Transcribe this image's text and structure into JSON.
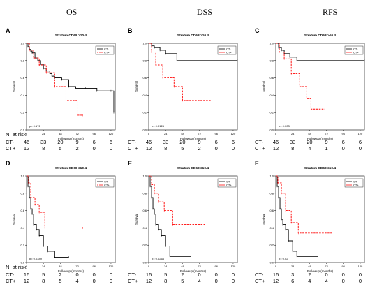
{
  "column_headers": [
    "OS",
    "DSS",
    "RFS"
  ],
  "at_risk_label": "N. at risk",
  "chart_data": [
    {
      "type": "line",
      "panel_letter": "A",
      "column": "OS",
      "title": "Stratum CD68 >10.4",
      "xlabel": "Followup (months)",
      "ylabel": "Survival",
      "xlim": [
        0,
        126
      ],
      "ylim": [
        0,
        1.0
      ],
      "xticks": [
        0,
        24,
        48,
        72,
        96,
        120
      ],
      "yticks": [
        0.0,
        0.2,
        0.4,
        0.6,
        0.8,
        1.0
      ],
      "pvalue_text": "p= 0.176",
      "legend": [
        "CT-",
        "CT+"
      ],
      "series": [
        {
          "name": "CT-",
          "color": "#000000",
          "dashed": false,
          "x": [
            0,
            2,
            4,
            6,
            8,
            12,
            16,
            20,
            24,
            28,
            33,
            36,
            40,
            50,
            60,
            70,
            84,
            100,
            120,
            124
          ],
          "y": [
            1.0,
            0.96,
            0.93,
            0.91,
            0.89,
            0.83,
            0.8,
            0.76,
            0.71,
            0.68,
            0.65,
            0.62,
            0.6,
            0.58,
            0.5,
            0.48,
            0.48,
            0.45,
            0.45,
            0.2
          ]
        },
        {
          "name": "CT+",
          "color": "#ff0000",
          "dashed": true,
          "x": [
            0,
            4,
            10,
            18,
            28,
            40,
            56,
            72,
            80
          ],
          "y": [
            1.0,
            0.92,
            0.83,
            0.75,
            0.66,
            0.5,
            0.34,
            0.17,
            0.17
          ]
        }
      ],
      "at_risk": {
        "CT-": [
          46,
          33,
          20,
          9,
          6,
          6
        ],
        "CT+": [
          12,
          8,
          5,
          2,
          0,
          0
        ]
      }
    },
    {
      "type": "line",
      "panel_letter": "B",
      "column": "DSS",
      "title": "Stratum CD68 >10.4",
      "xlabel": "Followup (months)",
      "ylabel": "Survival",
      "xlim": [
        0,
        126
      ],
      "ylim": [
        0,
        1.0
      ],
      "xticks": [
        0,
        24,
        48,
        72,
        96,
        120
      ],
      "yticks": [
        0.0,
        0.2,
        0.4,
        0.6,
        0.8,
        1.0
      ],
      "pvalue_text": "p= 0.0124",
      "legend": [
        "CT-",
        "CT+"
      ],
      "series": [
        {
          "name": "CT-",
          "color": "#000000",
          "dashed": false,
          "x": [
            0,
            4,
            8,
            16,
            24,
            40,
            126
          ],
          "y": [
            1.0,
            0.97,
            0.95,
            0.92,
            0.88,
            0.8,
            0.8
          ]
        },
        {
          "name": "CT+",
          "color": "#ff0000",
          "dashed": true,
          "x": [
            0,
            4,
            10,
            20,
            36,
            48,
            90
          ],
          "y": [
            1.0,
            0.9,
            0.75,
            0.6,
            0.5,
            0.34,
            0.34
          ]
        }
      ],
      "at_risk": {
        "CT-": [
          46,
          33,
          20,
          9,
          6,
          6
        ],
        "CT+": [
          12,
          8,
          5,
          2,
          0,
          0
        ]
      }
    },
    {
      "type": "line",
      "panel_letter": "C",
      "column": "RFS",
      "title": "Stratum CD68 >10.4",
      "xlabel": "Followup (months)",
      "ylabel": "Survival",
      "xlim": [
        0,
        126
      ],
      "ylim": [
        0,
        1.0
      ],
      "xticks": [
        0,
        24,
        48,
        72,
        96,
        120
      ],
      "yticks": [
        0.0,
        0.2,
        0.4,
        0.6,
        0.8,
        1.0
      ],
      "pvalue_text": "p= 0.003",
      "legend": [
        "CT-",
        "CT+"
      ],
      "series": [
        {
          "name": "CT-",
          "color": "#000000",
          "dashed": false,
          "x": [
            0,
            4,
            8,
            12,
            20,
            30,
            126
          ],
          "y": [
            1.0,
            0.95,
            0.92,
            0.88,
            0.84,
            0.8,
            0.8
          ]
        },
        {
          "name": "CT+",
          "color": "#ff0000",
          "dashed": true,
          "x": [
            0,
            5,
            12,
            22,
            34,
            44,
            50,
            70
          ],
          "y": [
            1.0,
            0.9,
            0.82,
            0.65,
            0.5,
            0.36,
            0.24,
            0.24
          ]
        }
      ],
      "at_risk": {
        "CT-": [
          46,
          33,
          20,
          9,
          6,
          6
        ],
        "CT+": [
          12,
          8,
          4,
          1,
          0,
          0
        ]
      }
    },
    {
      "type": "line",
      "panel_letter": "D",
      "column": "OS",
      "title": "Stratum CD68 ≤10.4",
      "xlabel": "Followup (months)",
      "ylabel": "Survival",
      "xlim": [
        0,
        126
      ],
      "ylim": [
        0,
        1.0
      ],
      "xticks": [
        0,
        24,
        48,
        72,
        96,
        120
      ],
      "yticks": [
        0.0,
        0.2,
        0.4,
        0.6,
        0.8,
        1.0
      ],
      "pvalue_text": "p= 0.0349",
      "legend": [
        "CT-",
        "CT+"
      ],
      "series": [
        {
          "name": "CT-",
          "color": "#000000",
          "dashed": false,
          "x": [
            0,
            2,
            4,
            6,
            8,
            10,
            14,
            18,
            24,
            30,
            40,
            60
          ],
          "y": [
            1.0,
            0.88,
            0.75,
            0.62,
            0.56,
            0.44,
            0.38,
            0.31,
            0.19,
            0.13,
            0.06,
            0.06
          ]
        },
        {
          "name": "CT+",
          "color": "#ff0000",
          "dashed": true,
          "x": [
            0,
            3,
            6,
            12,
            18,
            26,
            80
          ],
          "y": [
            1.0,
            0.92,
            0.75,
            0.67,
            0.58,
            0.4,
            0.4
          ]
        }
      ],
      "at_risk": {
        "CT-": [
          16,
          5,
          2,
          0,
          0,
          0
        ],
        "CT+": [
          12,
          8,
          5,
          4,
          0,
          0
        ]
      }
    },
    {
      "type": "line",
      "panel_letter": "E",
      "column": "DSS",
      "title": "Stratum CD68 ≤10.4",
      "xlabel": "Followup (months)",
      "ylabel": "Survival",
      "xlim": [
        0,
        126
      ],
      "ylim": [
        0,
        1.0
      ],
      "xticks": [
        0,
        24,
        48,
        72,
        96,
        120
      ],
      "yticks": [
        0.0,
        0.2,
        0.4,
        0.6,
        0.8,
        1.0
      ],
      "pvalue_text": "p= 0.0264",
      "legend": [
        "CT-",
        "CT+"
      ],
      "series": [
        {
          "name": "CT-",
          "color": "#000000",
          "dashed": false,
          "x": [
            0,
            2,
            4,
            6,
            8,
            10,
            14,
            18,
            24,
            30,
            60
          ],
          "y": [
            1.0,
            0.88,
            0.75,
            0.62,
            0.56,
            0.44,
            0.38,
            0.31,
            0.19,
            0.07,
            0.07
          ]
        },
        {
          "name": "CT+",
          "color": "#ff0000",
          "dashed": true,
          "x": [
            0,
            4,
            8,
            14,
            22,
            34,
            80
          ],
          "y": [
            1.0,
            0.9,
            0.8,
            0.7,
            0.6,
            0.44,
            0.44
          ]
        }
      ],
      "at_risk": {
        "CT-": [
          16,
          5,
          2,
          0,
          0,
          0
        ],
        "CT+": [
          12,
          8,
          5,
          4,
          0,
          0
        ]
      }
    },
    {
      "type": "line",
      "panel_letter": "F",
      "column": "RFS",
      "title": "Stratum CD68 ≤10.4",
      "xlabel": "Followup (months)",
      "ylabel": "Survival",
      "xlim": [
        0,
        126
      ],
      "ylim": [
        0,
        1.0
      ],
      "xticks": [
        0,
        24,
        48,
        72,
        96,
        120
      ],
      "yticks": [
        0.0,
        0.2,
        0.4,
        0.6,
        0.8,
        1.0
      ],
      "pvalue_text": "p= 0.02",
      "legend": [
        "CT-",
        "CT+"
      ],
      "series": [
        {
          "name": "CT-",
          "color": "#000000",
          "dashed": false,
          "x": [
            0,
            2,
            4,
            6,
            8,
            10,
            14,
            18,
            24,
            30,
            60
          ],
          "y": [
            1.0,
            0.88,
            0.75,
            0.62,
            0.5,
            0.44,
            0.38,
            0.25,
            0.13,
            0.07,
            0.07
          ]
        },
        {
          "name": "CT+",
          "color": "#ff0000",
          "dashed": true,
          "x": [
            0,
            3,
            8,
            14,
            22,
            32,
            80
          ],
          "y": [
            1.0,
            0.92,
            0.8,
            0.6,
            0.46,
            0.34,
            0.34
          ]
        }
      ],
      "at_risk": {
        "CT-": [
          16,
          3,
          2,
          0,
          0,
          0
        ],
        "CT+": [
          12,
          6,
          4,
          4,
          0,
          0
        ]
      }
    }
  ]
}
